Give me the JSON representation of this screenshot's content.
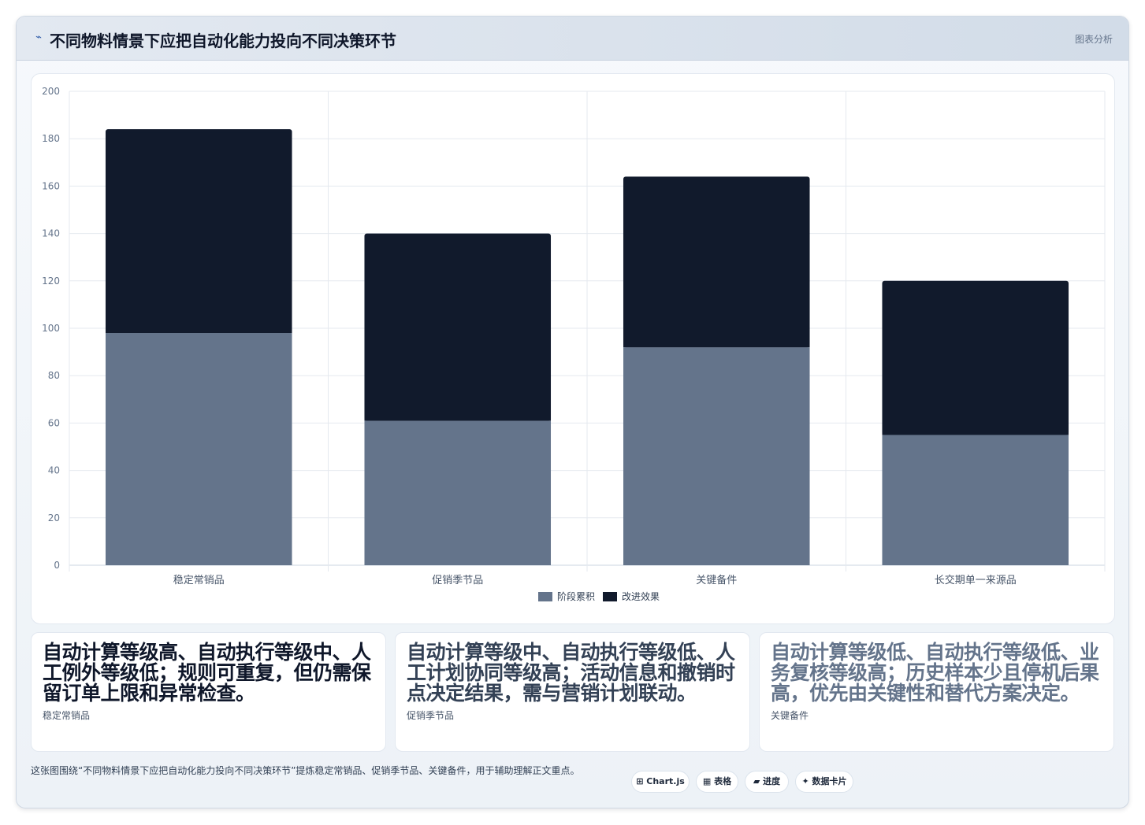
{
  "header": {
    "icon": "chart-line-icon",
    "title": "不同物料情景下应把自动化能力投向不同决策环节",
    "tag": "图表分析"
  },
  "chart_data": {
    "type": "bar",
    "stacked": true,
    "categories": [
      "稳定常销品",
      "促销季节品",
      "关键备件",
      "长交期单一来源品"
    ],
    "series": [
      {
        "name": "阶段累积",
        "values": [
          98,
          61,
          92,
          55
        ],
        "color": "#64748b"
      },
      {
        "name": "改进效果",
        "values": [
          86,
          79,
          72,
          65
        ],
        "color": "#111a2c"
      }
    ],
    "ylim": [
      0,
      200
    ],
    "yticks": [
      0,
      20,
      40,
      60,
      80,
      100,
      120,
      140,
      160,
      180,
      200
    ],
    "grid": true,
    "legend_position": "bottom"
  },
  "cards": [
    {
      "text": "自动计算等级高、自动执行等级中、人工例外等级低；规则可重复，但仍需保留订单上限和异常检查。",
      "label": "稳定常销品",
      "color": "#0f172a"
    },
    {
      "text": "自动计算等级中、自动执行等级低、人工计划协同等级高；活动信息和撤销时点决定结果，需与营销计划联动。",
      "label": "促销季节品",
      "color": "#334155"
    },
    {
      "text": "自动计算等级低、自动执行等级低、业务复核等级高；历史样本少且停机后果高，优先由关键性和替代方案决定。",
      "label": "关键备件",
      "color": "#64748b"
    }
  ],
  "footer": {
    "text": "这张图围绕“不同物料情景下应把自动化能力投向不同决策环节”提炼稳定常销品、促销季节品、关键备件，用于辅助理解正文重点。",
    "pills": [
      {
        "icon": "chart-icon",
        "label": "⊞ Chart.js"
      },
      {
        "icon": "table-icon",
        "label": "▦ 表格"
      },
      {
        "icon": "progress-icon",
        "label": "▰ 进度"
      },
      {
        "icon": "card-icon",
        "label": "✦ 数据卡片"
      }
    ]
  }
}
